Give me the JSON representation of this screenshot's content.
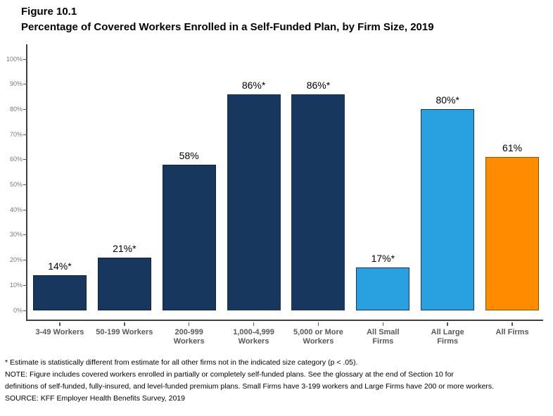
{
  "header": {
    "figure_label": "Figure 10.1",
    "title": "Percentage of Covered Workers Enrolled in a Self-Funded Plan, by Firm Size, 2019"
  },
  "chart_data": {
    "type": "bar",
    "title": "Percentage of Covered Workers Enrolled in a Self-Funded Plan, by Firm Size, 2019",
    "categories": [
      "3-49 Workers",
      "50-199 Workers",
      "200-999\nWorkers",
      "1,000-4,999\nWorkers",
      "5,000 or More\nWorkers",
      "All Small\nFirms",
      "All Large\nFirms",
      "All Firms"
    ],
    "values": [
      14,
      21,
      58,
      86,
      86,
      17,
      80,
      61
    ],
    "bar_labels": [
      "14%*",
      "21%*",
      "58%",
      "86%*",
      "86%*",
      "17%*",
      "80%*",
      "61%"
    ],
    "colors": [
      "#17375E",
      "#17375E",
      "#17375E",
      "#17375E",
      "#17375E",
      "#29A0E0",
      "#29A0E0",
      "#FF8C00"
    ],
    "border_colors": [
      "#0D2240",
      "#0D2240",
      "#0D2240",
      "#17375E",
      "#17375E",
      "#17375E",
      "#17375E",
      "#8A5700"
    ],
    "xlabel": "",
    "ylabel": "",
    "ylim": [
      0,
      100
    ],
    "ytick_step": 10,
    "ytick_suffix": "%",
    "grid": false,
    "legend": "none",
    "accent_colors": {
      "navy": "#17375E",
      "light_blue": "#29A0E0",
      "orange": "#FF8C00"
    }
  },
  "footnotes": {
    "estimate_note": "* Estimate is statistically different from estimate for all other firms not in the indicated size category (p < .05).",
    "note_line1": "NOTE: Figure includes covered workers enrolled in partially or completely self-funded plans. See the glossary at the end of Section 10 for",
    "note_line2": "definitions of self-funded, fully-insured, and level-funded premium plans. Small Firms have 3-199 workers and Large Firms have 200 or more workers.",
    "source": "SOURCE: KFF Employer Health Benefits Survey, 2019"
  }
}
